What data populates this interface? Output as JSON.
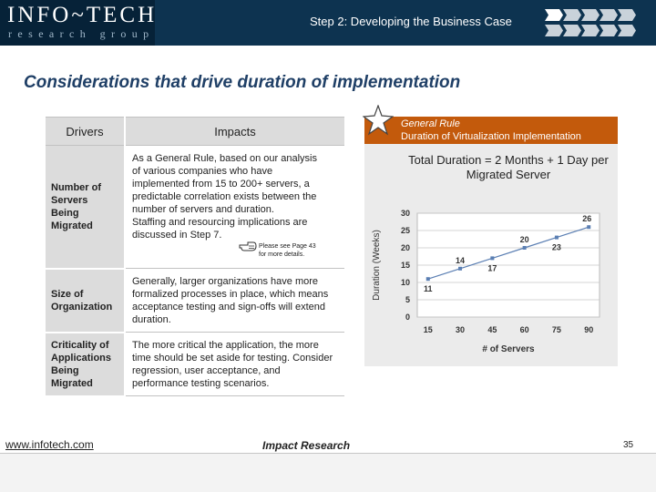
{
  "header": {
    "logo_main": "INFO~TECH",
    "logo_sub": "research group",
    "step_title": "Step 2: Developing the Business Case"
  },
  "page_title": "Considerations that drive duration of implementation",
  "table": {
    "headers": {
      "drivers": "Drivers",
      "impacts": "Impacts"
    },
    "rows": [
      {
        "driver": "Number of Servers Being Migrated",
        "impact": [
          "As a General Rule, based on our analysis",
          "of various companies who have",
          "implemented from 15 to 200+ servers, a",
          "predictable correlation exists between the",
          "number of servers and duration.",
          "Staffing and resourcing implications are",
          "discussed in Step 7."
        ],
        "note": "Please see Page 43 for more details."
      },
      {
        "driver": "Size of Organization",
        "impact": "Generally, larger organizations have more formalized processes in place, which means acceptance testing and sign-offs will extend duration."
      },
      {
        "driver": "Criticality of Applications Being Migrated",
        "impact": "The more critical the application, the more time should be set aside for testing. Consider regression, user acceptance, and performance testing scenarios."
      }
    ]
  },
  "panel": {
    "header_line1": "General Rule",
    "header_line2": "Duration of Virtualization Implementation",
    "total_duration": "Total Duration = 2 Months + 1 Day per Migrated Server"
  },
  "chart_data": {
    "type": "line",
    "x": [
      15,
      30,
      45,
      60,
      75,
      90
    ],
    "y": [
      11,
      14,
      17,
      20,
      23,
      26
    ],
    "data_labels": [
      "11",
      "14",
      "17",
      "20",
      "23",
      "26"
    ],
    "xlabel": "# of Servers",
    "ylabel": "Duration (Weeks)",
    "xlim": [
      10,
      95
    ],
    "ylim": [
      0,
      30
    ],
    "y_ticks": [
      0,
      5,
      10,
      15,
      20,
      25,
      30
    ],
    "grid": true,
    "colors": {
      "line": "#5b7fb3",
      "marker": "#5b7fb3",
      "background": "#ebebeb"
    }
  },
  "footer": {
    "url": "www.infotech.com",
    "center": "Impact Research",
    "page_number": "35"
  },
  "colors": {
    "header_bg": "#0d3350",
    "title": "#1f3f66",
    "accent": "#c35a0c"
  }
}
